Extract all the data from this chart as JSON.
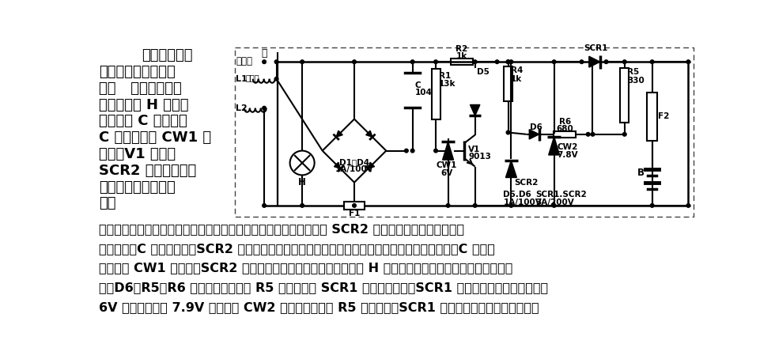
{
  "bg_color": "#ffffff",
  "text_color": "#000000",
  "left_text_lines": [
    "防止蓄电池过",
    "充电的摩托车电压调",
    "节器   磁电机的输出",
    "一路为负载 H 供电，",
    "另一路给 C 充电。当",
    "C 上的电压使 CW1 击",
    "穿时，V1 导通，",
    "SCR2 被触发导通直",
    "到交流电压正半周结",
    "束。"
  ],
  "bottom_text_lines": [
    "不断重复以上过程，使磁电机输出的每一周期的负半波均有一部分因 SCR2 导通而被削波。如果磁电机",
    "电压升高，C 的充电加速，SCR2 的导通角也随之增大，限制了电压的升高。如果磁电机电压下降，C 上电压",
    "不足以使 CW1 击穿时，SCR2 截止，这时磁电机上的电压全部加在 H 上。磁电机输出瞬时值超过蓄电池电压",
    "时，D6、R5、R6 流过正向电流，当 R5 的压降大于 SCR1 的触发电压时，SCR1 导通，蓄电池被充电，如果",
    "6V 蓄电池充电达 7.9V 时，由于 CW2 的钳位作用，使 R5 电流反向，SCR1 截止，防止蓄电池的过充电。"
  ]
}
